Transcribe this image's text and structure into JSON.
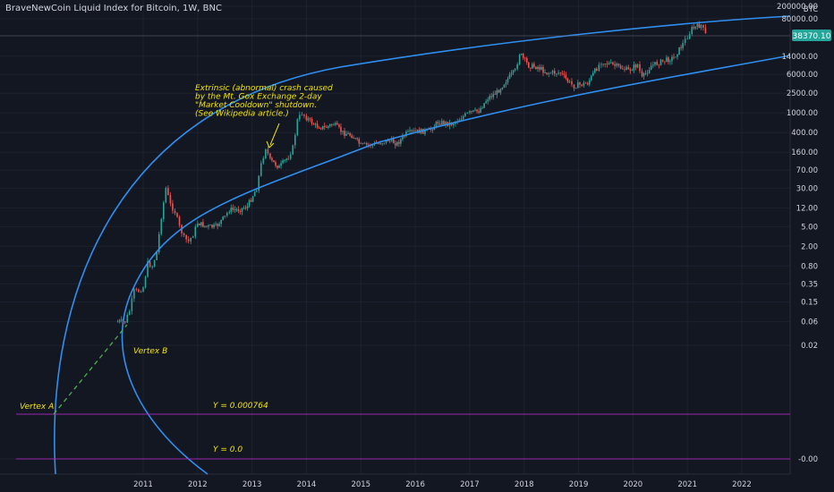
{
  "chart_title": "BraveNewCoin Liquid Index for Bitcoin, 1W, BNC",
  "currency_label": "BTC",
  "last_price": "38370.10",
  "colors": {
    "background": "#131722",
    "grid": "#1e2230",
    "up": "#26a69a",
    "down": "#ef5350",
    "channel": "#2f8ff0",
    "horizontal": "#9c27b0",
    "annotation": "#f2e400",
    "dashed": "#4caf50",
    "price_tag": "#26a69a"
  },
  "chart_data": {
    "type": "line",
    "title": "BraveNewCoin Liquid Index for Bitcoin, 1W, BNC",
    "scale": "log",
    "y_tick_labels": [
      "200000.00",
      "80000.00",
      "14000.00",
      "6000.00",
      "2500.00",
      "1000.00",
      "400.00",
      "160.00",
      "70.00",
      "30.00",
      "12.00",
      "5.00",
      "2.00",
      "0.80",
      "0.35",
      "0.15",
      "0.06",
      "0.02",
      "-0.00"
    ],
    "x_tick_labels": [
      "2011",
      "2012",
      "2013",
      "2014",
      "2015",
      "2016",
      "2017",
      "2018",
      "2019",
      "2020",
      "2021",
      "2022"
    ],
    "series": [
      {
        "values": [
          [
            "2010-07",
            0.06
          ],
          [
            "2010-09",
            0.06
          ],
          [
            "2010-10",
            0.1
          ],
          [
            "2010-11",
            0.25
          ],
          [
            "2010-12",
            0.25
          ],
          [
            "2011-01",
            0.3
          ],
          [
            "2011-02",
            0.9
          ],
          [
            "2011-03",
            0.8
          ],
          [
            "2011-04",
            1.5
          ],
          [
            "2011-05",
            8
          ],
          [
            "2011-06",
            30
          ],
          [
            "2011-07",
            14
          ],
          [
            "2011-08",
            10
          ],
          [
            "2011-09",
            5
          ],
          [
            "2011-10",
            3
          ],
          [
            "2011-11",
            2.5
          ],
          [
            "2011-12",
            3.5
          ],
          [
            "2012-01",
            6
          ],
          [
            "2012-03",
            5
          ],
          [
            "2012-05",
            5
          ],
          [
            "2012-07",
            8
          ],
          [
            "2012-08",
            11
          ],
          [
            "2012-10",
            11
          ],
          [
            "2012-12",
            13
          ],
          [
            "2013-02",
            30
          ],
          [
            "2013-03",
            90
          ],
          [
            "2013-04",
            200
          ],
          [
            "2013-05",
            110
          ],
          [
            "2013-07",
            80
          ],
          [
            "2013-09",
            130
          ],
          [
            "2013-10",
            200
          ],
          [
            "2013-11",
            700
          ],
          [
            "2013-12",
            1000
          ],
          [
            "2014-01",
            800
          ],
          [
            "2014-03",
            550
          ],
          [
            "2014-05",
            500
          ],
          [
            "2014-07",
            600
          ],
          [
            "2014-09",
            400
          ],
          [
            "2014-11",
            350
          ],
          [
            "2015-01",
            220
          ],
          [
            "2015-04",
            230
          ],
          [
            "2015-07",
            280
          ],
          [
            "2015-09",
            240
          ],
          [
            "2015-11",
            380
          ],
          [
            "2016-01",
            420
          ],
          [
            "2016-04",
            430
          ],
          [
            "2016-06",
            650
          ],
          [
            "2016-09",
            600
          ],
          [
            "2016-12",
            900
          ],
          [
            "2017-01",
            1000
          ],
          [
            "2017-03",
            1100
          ],
          [
            "2017-05",
            2000
          ],
          [
            "2017-07",
            2600
          ],
          [
            "2017-09",
            4500
          ],
          [
            "2017-11",
            7000
          ],
          [
            "2017-12",
            16000
          ],
          [
            "2018-02",
            9000
          ],
          [
            "2018-04",
            8500
          ],
          [
            "2018-06",
            6500
          ],
          [
            "2018-09",
            6500
          ],
          [
            "2018-11",
            4000
          ],
          [
            "2018-12",
            3500
          ],
          [
            "2019-03",
            4000
          ],
          [
            "2019-05",
            8000
          ],
          [
            "2019-06",
            11000
          ],
          [
            "2019-09",
            9000
          ],
          [
            "2019-12",
            7200
          ],
          [
            "2020-02",
            9500
          ],
          [
            "2020-03",
            5000
          ],
          [
            "2020-05",
            9000
          ],
          [
            "2020-08",
            11500
          ],
          [
            "2020-10",
            13000
          ],
          [
            "2020-12",
            25000
          ],
          [
            "2021-01",
            35000
          ],
          [
            "2021-02",
            50000
          ],
          [
            "2021-04",
            60000
          ],
          [
            "2021-05",
            38370
          ]
        ]
      }
    ],
    "annotations": [
      "Extrinsic (abnormal) crash caused",
      "by the Mt. Gox Exchange 2-day",
      "\"Market Cooldown\" shutdown.",
      "(See Wikipedia article.)"
    ],
    "labels": {
      "vertex_a": "Vertex A",
      "vertex_b": "Vertex B",
      "y_line_1": "Y =  0.000764",
      "y_line_2": "Y =  0.0"
    },
    "grid": true
  }
}
